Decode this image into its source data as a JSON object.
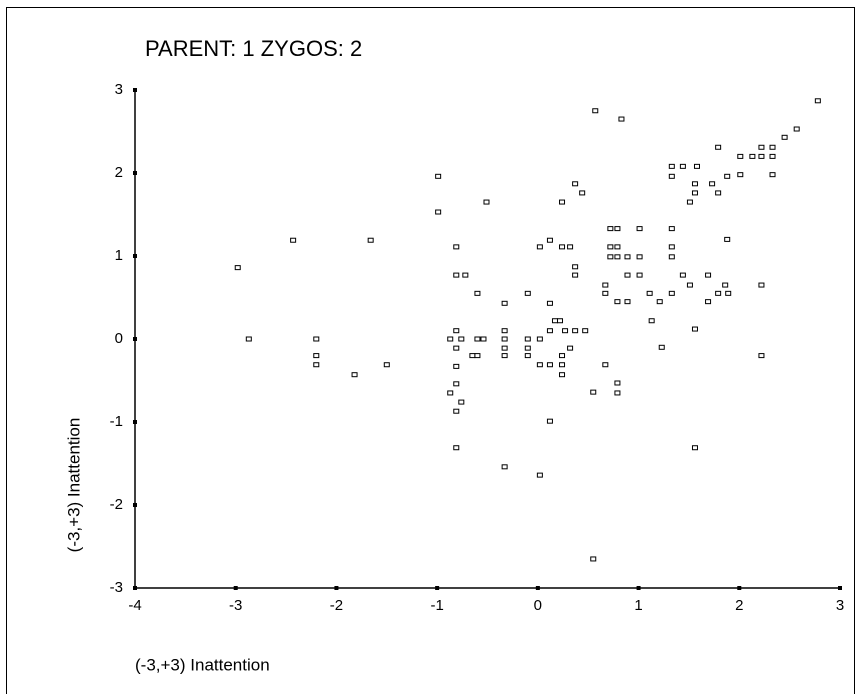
{
  "chart_data": {
    "type": "scatter",
    "title": "PARENT:  1    ZYGOS:  2",
    "x_label": "(-3,+3) Inattention",
    "y_label": "(-3,+3) Inattention",
    "xlim": [
      -4,
      3
    ],
    "ylim": [
      -3,
      3
    ],
    "xticks": [
      -4,
      -3,
      -2,
      -1,
      0,
      1,
      2,
      3
    ],
    "yticks": [
      -3,
      -2,
      -1,
      0,
      1,
      2,
      3
    ],
    "marker_color": "#000000",
    "x": [
      -2.98,
      -2.87,
      -2.43,
      -2.2,
      -2.2,
      -2.2,
      -1.66,
      -1.82,
      -1.5,
      -0.99,
      -0.99,
      -0.87,
      -0.76,
      -0.87,
      -0.76,
      -0.65,
      -0.81,
      -0.81,
      -0.72,
      -0.81,
      -0.81,
      -0.81,
      -0.81,
      -0.81,
      -0.81,
      -0.6,
      -0.54,
      -0.6,
      -0.33,
      -0.33,
      -0.33,
      -0.33,
      -0.33,
      -0.33,
      -0.51,
      -0.6,
      -0.1,
      -0.1,
      -0.1,
      -0.1,
      0.02,
      0.02,
      0.02,
      0.02,
      0.12,
      0.12,
      0.12,
      0.12,
      0.12,
      0.17,
      0.22,
      0.27,
      0.24,
      0.24,
      0.24,
      0.24,
      0.24,
      0.32,
      0.32,
      0.37,
      0.37,
      0.37,
      0.37,
      0.44,
      0.47,
      0.57,
      0.55,
      0.55,
      0.67,
      0.67,
      0.67,
      0.72,
      0.72,
      0.72,
      0.79,
      0.79,
      0.79,
      0.79,
      0.79,
      0.79,
      0.83,
      0.89,
      0.89,
      0.89,
      1.01,
      1.01,
      1.01,
      1.11,
      1.13,
      1.21,
      1.23,
      1.33,
      1.33,
      1.33,
      1.33,
      1.33,
      1.33,
      1.44,
      1.44,
      1.51,
      1.51,
      1.56,
      1.56,
      1.58,
      1.56,
      1.56,
      1.69,
      1.69,
      1.73,
      1.79,
      1.79,
      1.79,
      1.86,
      1.88,
      1.88,
      1.89,
      2.01,
      2.01,
      2.13,
      2.22,
      2.22,
      2.22,
      2.22,
      2.33,
      2.33,
      2.33,
      2.45,
      2.57,
      2.78
    ],
    "y": [
      0.86,
      0,
      1.19,
      0,
      -0.2,
      -0.31,
      1.19,
      -0.43,
      -0.31,
      1.96,
      1.53,
      0,
      0,
      -0.65,
      -0.76,
      -0.2,
      1.11,
      0.77,
      0.77,
      0.1,
      -0.11,
      -0.33,
      -0.54,
      -0.87,
      -1.31,
      0,
      0,
      -0.2,
      0.43,
      0.1,
      0,
      -0.11,
      -0.2,
      -1.54,
      1.65,
      0.55,
      0.55,
      0,
      -0.11,
      -0.2,
      1.11,
      0,
      -0.31,
      -1.64,
      1.19,
      0.43,
      0.1,
      -0.31,
      -0.99,
      0.22,
      0.22,
      0.1,
      1.11,
      -0.2,
      -0.31,
      -0.43,
      1.65,
      1.11,
      -0.11,
      1.87,
      0.87,
      0.77,
      0.1,
      1.76,
      0.1,
      2.75,
      -0.64,
      -2.65,
      -0.31,
      0.65,
      0.55,
      1.33,
      1.11,
      0.99,
      1.33,
      1.11,
      0.99,
      0.45,
      -0.53,
      -0.65,
      2.65,
      0.45,
      0.77,
      0.99,
      0.99,
      0.77,
      1.33,
      0.55,
      0.22,
      0.45,
      -0.1,
      1.33,
      1.11,
      0.99,
      0.55,
      2.08,
      1.96,
      2.08,
      0.77,
      1.65,
      0.65,
      1.87,
      1.76,
      2.08,
      0.12,
      -1.31,
      0.77,
      0.45,
      1.87,
      1.76,
      0.55,
      2.31,
      0.65,
      1.96,
      1.2,
      0.55,
      1.98,
      2.2,
      2.2,
      2.31,
      2.2,
      0.65,
      -0.2,
      2.31,
      2.2,
      1.98,
      2.43,
      2.53,
      2.87
    ]
  }
}
